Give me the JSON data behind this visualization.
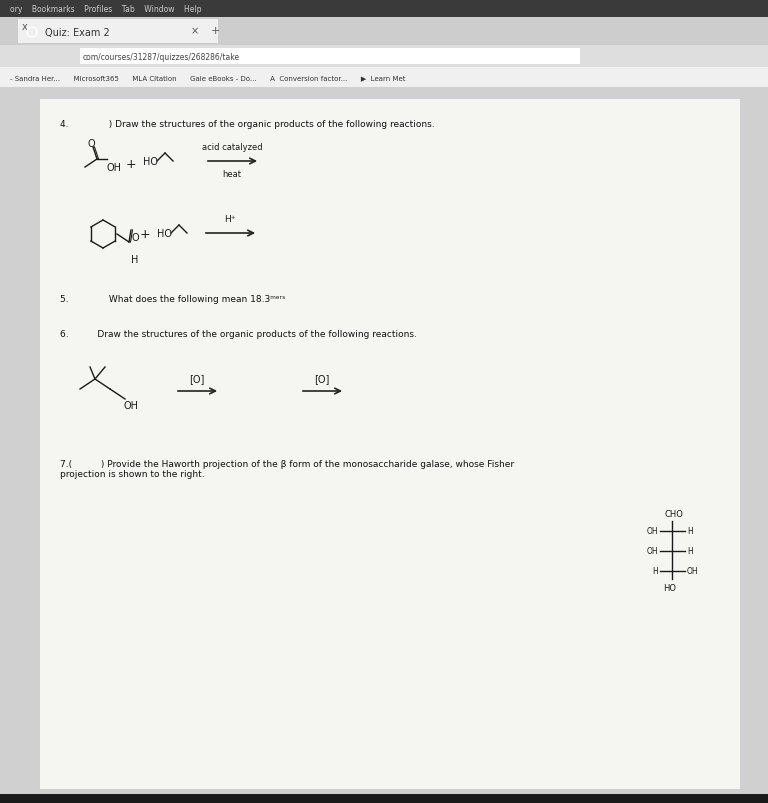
{
  "bg_color_top_bar": "#3a3a3a",
  "bg_color_menu_bar": "#2d2d2d",
  "bg_color_tab_bar": "#d4d4d4",
  "bg_color_url_bar": "#ebebeb",
  "bg_color_bookmarks": "#f0f0f0",
  "bg_color_page": "#e8e8e8",
  "bg_color_content": "#f5f5f2",
  "menu_text": "ory    Bookmarks    Profiles    Tab    Window    Help",
  "tab_text": "Quiz: Exam 2",
  "url_text": "com/courses/31287/quizzes/268286/take",
  "bookmarks_text": "- Sandra Her...      Microsoft365      MLA Citation      Gale eBooks - Do...      A  Conversion factor...      ▶  Learn Met",
  "q4_text": "4.              ) Draw the structures of the organic products of the following reactions.",
  "q5_text": "5.              What does the following mean 18.3ᵐᵉʳˢ",
  "q6_text": "6.          Draw the structures of the organic products of the following reactions.",
  "q7_text": "7.(          ) Provide the Haworth projection of the β form of the monosaccharide galase, whose Fisher\nprojection is shown to the right."
}
